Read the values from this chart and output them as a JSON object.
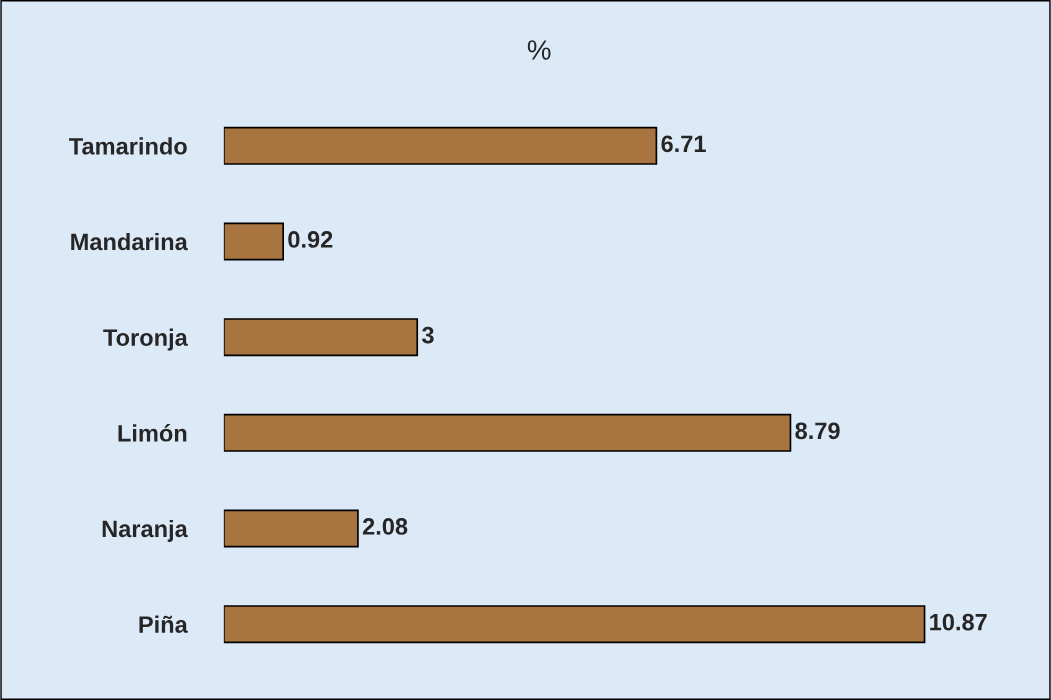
{
  "chart_data": {
    "type": "bar",
    "orientation": "horizontal",
    "title": "%",
    "categories": [
      "Tamarindo",
      "Mandarina",
      "Toronja",
      "Limón",
      "Naranja",
      "Piña"
    ],
    "values": [
      6.71,
      0.92,
      3,
      8.79,
      2.08,
      10.87
    ],
    "color": "#a8743f",
    "data_labels": true,
    "grid": false,
    "legend": false
  }
}
